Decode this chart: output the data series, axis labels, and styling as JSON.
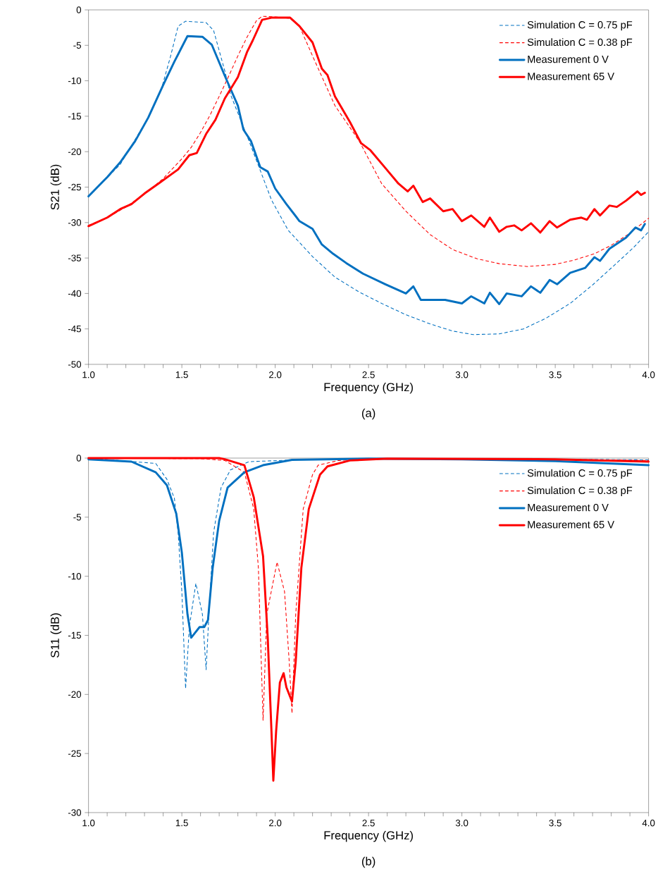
{
  "chart_data": [
    {
      "type": "line",
      "xlabel": "Frequency (GHz)",
      "ylabel": "S21 (dB)",
      "annotations": [
        "(a)"
      ],
      "xlim": [
        1,
        4
      ],
      "ylim": [
        -50,
        0
      ],
      "xticks": [
        {
          "value": 1,
          "label": "1.0"
        },
        {
          "value": 1.1,
          "label": null
        },
        {
          "value": 1.2,
          "label": null
        },
        {
          "value": 1.3,
          "label": null
        },
        {
          "value": 1.4,
          "label": null
        },
        {
          "value": 1.5,
          "label": "1.5"
        },
        {
          "value": 1.6,
          "label": null
        },
        {
          "value": 1.7,
          "label": null
        },
        {
          "value": 1.8,
          "label": null
        },
        {
          "value": 1.9,
          "label": null
        },
        {
          "value": 2,
          "label": "2.0"
        },
        {
          "value": 2.1,
          "label": null
        },
        {
          "value": 2.2,
          "label": null
        },
        {
          "value": 2.3,
          "label": null
        },
        {
          "value": 2.4,
          "label": null
        },
        {
          "value": 2.5,
          "label": "2.5"
        },
        {
          "value": 2.6,
          "label": null
        },
        {
          "value": 2.7,
          "label": null
        },
        {
          "value": 2.8,
          "label": null
        },
        {
          "value": 2.9,
          "label": null
        },
        {
          "value": 3,
          "label": "3.0"
        },
        {
          "value": 3.1,
          "label": null
        },
        {
          "value": 3.2,
          "label": null
        },
        {
          "value": 3.3,
          "label": null
        },
        {
          "value": 3.4,
          "label": null
        },
        {
          "value": 3.5,
          "label": "3.5"
        },
        {
          "value": 3.6,
          "label": null
        },
        {
          "value": 3.7,
          "label": null
        },
        {
          "value": 3.8,
          "label": null
        },
        {
          "value": 3.9,
          "label": null
        },
        {
          "value": 4,
          "label": "4.0"
        }
      ],
      "yticks": [
        0,
        -5,
        -10,
        -15,
        -20,
        -25,
        -30,
        -35,
        -40,
        -45,
        -50
      ],
      "legend": "top right",
      "series": [
        {
          "name": "Simulation C = 0.75 pF",
          "color": "#0070c0",
          "line_style": "dashed",
          "x": [
            1.0,
            1.17,
            1.32,
            1.39,
            1.44,
            1.48,
            1.52,
            1.63,
            1.67,
            1.73,
            1.76,
            1.86,
            1.98,
            2.07,
            2.2,
            2.32,
            2.45,
            2.57,
            2.7,
            2.83,
            2.95,
            3.06,
            3.2,
            3.33,
            3.45,
            3.58,
            3.7,
            3.83,
            3.92,
            4.0
          ],
          "values": [
            -26.3,
            -21.8,
            -15.2,
            -11.2,
            -6.5,
            -2.3,
            -1.6,
            -1.8,
            -2.9,
            -8.6,
            -11.9,
            -18.5,
            -26.8,
            -31.1,
            -34.8,
            -37.7,
            -39.8,
            -41.4,
            -43,
            -44.3,
            -45.3,
            -45.8,
            -45.7,
            -45,
            -43.5,
            -41.4,
            -38.8,
            -35.7,
            -33.5,
            -31.3
          ]
        },
        {
          "name": "Simulation C = 0.38 pF",
          "color": "#ff0000",
          "line_style": "dashed",
          "x": [
            1.0,
            1.1,
            1.2,
            1.3,
            1.4,
            1.5,
            1.55,
            1.6,
            1.65,
            1.7,
            1.75,
            1.8,
            1.85,
            1.9,
            1.93,
            2.0,
            2.08,
            2.13,
            2.2,
            2.32,
            2.45,
            2.57,
            2.7,
            2.83,
            2.95,
            3.08,
            3.2,
            3.35,
            3.5,
            3.6,
            3.71,
            3.8,
            3.9,
            4.0
          ],
          "values": [
            -30.4,
            -29.3,
            -27.8,
            -26,
            -23.8,
            -21,
            -19.4,
            -17.3,
            -14.9,
            -12.2,
            -9.4,
            -6.5,
            -3.8,
            -1.5,
            -0.9,
            -1.0,
            -1.2,
            -2.3,
            -6.5,
            -13.5,
            -18.5,
            -24.5,
            -28.4,
            -31.7,
            -33.8,
            -35.1,
            -35.8,
            -36.2,
            -35.9,
            -35.3,
            -34.4,
            -33.2,
            -31.5,
            -29.4
          ]
        },
        {
          "name": "Measurement 0 V",
          "color": "#0070c0",
          "line_style": "solid",
          "x": [
            1.0,
            1.1,
            1.17,
            1.25,
            1.32,
            1.4,
            1.46,
            1.53,
            1.61,
            1.66,
            1.73,
            1.8,
            1.83,
            1.87,
            1.92,
            1.96,
            2.0,
            2.06,
            2.11,
            2.13,
            2.2,
            2.25,
            2.31,
            2.38,
            2.47,
            2.59,
            2.7,
            2.74,
            2.78,
            2.91,
            3.0,
            3.05,
            3.12,
            3.15,
            3.2,
            3.24,
            3.32,
            3.37,
            3.42,
            3.47,
            3.51,
            3.58,
            3.66,
            3.71,
            3.74,
            3.79,
            3.88,
            3.93,
            3.96,
            3.98
          ],
          "values": [
            -26.3,
            -23.6,
            -21.5,
            -18.5,
            -15.2,
            -10.6,
            -7.3,
            -3.7,
            -3.8,
            -4.9,
            -9.3,
            -13.5,
            -16.9,
            -18.5,
            -22.2,
            -22.8,
            -25.2,
            -27.4,
            -29.1,
            -29.8,
            -30.9,
            -33.1,
            -34.4,
            -35.7,
            -37.2,
            -38.7,
            -40,
            -39,
            -40.9,
            -40.9,
            -41.4,
            -40.4,
            -41.4,
            -39.9,
            -41.5,
            -40,
            -40.4,
            -39,
            -39.9,
            -38.1,
            -38.7,
            -37.1,
            -36.4,
            -34.9,
            -35.4,
            -33.7,
            -32.1,
            -30.7,
            -31.1,
            -30.2
          ]
        },
        {
          "name": "Measurement 65 V",
          "color": "#ff0000",
          "line_style": "solid",
          "x": [
            1.0,
            1.1,
            1.17,
            1.23,
            1.3,
            1.38,
            1.48,
            1.54,
            1.58,
            1.63,
            1.68,
            1.73,
            1.8,
            1.85,
            1.88,
            1.93,
            1.98,
            2.08,
            2.13,
            2.2,
            2.25,
            2.28,
            2.32,
            2.4,
            2.46,
            2.51,
            2.59,
            2.66,
            2.71,
            2.74,
            2.79,
            2.83,
            2.9,
            2.95,
            3.0,
            3.05,
            3.12,
            3.15,
            3.2,
            3.24,
            3.28,
            3.32,
            3.37,
            3.42,
            3.47,
            3.51,
            3.58,
            3.64,
            3.67,
            3.71,
            3.74,
            3.79,
            3.83,
            3.88,
            3.94,
            3.96,
            3.98
          ],
          "values": [
            -30.5,
            -29.3,
            -28.1,
            -27.4,
            -25.9,
            -24.4,
            -22.5,
            -20.5,
            -20.2,
            -17.5,
            -15.5,
            -12.5,
            -9.5,
            -5.9,
            -4.3,
            -1.4,
            -1.1,
            -1.1,
            -2.3,
            -4.6,
            -8.3,
            -9.2,
            -12.2,
            -15.8,
            -18.8,
            -19.8,
            -22.3,
            -24.5,
            -25.6,
            -24.8,
            -27.1,
            -26.6,
            -28.4,
            -28.1,
            -29.8,
            -29,
            -30.6,
            -29.3,
            -31.3,
            -30.6,
            -30.4,
            -31.1,
            -30.1,
            -31.4,
            -29.8,
            -30.7,
            -29.6,
            -29.3,
            -29.6,
            -28.1,
            -29,
            -27.6,
            -27.8,
            -26.9,
            -25.6,
            -26.1,
            -25.8
          ]
        }
      ]
    },
    {
      "type": "line",
      "xlabel": "Frequency (GHz)",
      "ylabel": "S11 (dB)",
      "annotations": [
        "(b)"
      ],
      "xlim": [
        1,
        4
      ],
      "ylim": [
        -30,
        0
      ],
      "xticks": [
        {
          "value": 1,
          "label": "1.0"
        },
        {
          "value": 1.1,
          "label": null
        },
        {
          "value": 1.2,
          "label": null
        },
        {
          "value": 1.3,
          "label": null
        },
        {
          "value": 1.4,
          "label": null
        },
        {
          "value": 1.5,
          "label": "1.5"
        },
        {
          "value": 1.6,
          "label": null
        },
        {
          "value": 1.7,
          "label": null
        },
        {
          "value": 1.8,
          "label": null
        },
        {
          "value": 1.9,
          "label": null
        },
        {
          "value": 2,
          "label": "2.0"
        },
        {
          "value": 2.1,
          "label": null
        },
        {
          "value": 2.2,
          "label": null
        },
        {
          "value": 2.3,
          "label": null
        },
        {
          "value": 2.4,
          "label": null
        },
        {
          "value": 2.5,
          "label": "2.5"
        },
        {
          "value": 2.6,
          "label": null
        },
        {
          "value": 2.7,
          "label": null
        },
        {
          "value": 2.8,
          "label": null
        },
        {
          "value": 2.9,
          "label": null
        },
        {
          "value": 3,
          "label": "3.0"
        },
        {
          "value": 3.1,
          "label": null
        },
        {
          "value": 3.2,
          "label": null
        },
        {
          "value": 3.3,
          "label": null
        },
        {
          "value": 3.4,
          "label": null
        },
        {
          "value": 3.5,
          "label": "3.5"
        },
        {
          "value": 3.6,
          "label": null
        },
        {
          "value": 3.7,
          "label": null
        },
        {
          "value": 3.8,
          "label": null
        },
        {
          "value": 3.9,
          "label": null
        },
        {
          "value": 4,
          "label": "4.0"
        }
      ],
      "yticks": [
        0,
        -5,
        -10,
        -15,
        -20,
        -25,
        -30
      ],
      "legend": "top right",
      "series": [
        {
          "name": "Simulation C = 0.75 pF",
          "color": "#0070c0",
          "line_style": "dashed",
          "x": [
            1.0,
            1.36,
            1.42,
            1.46,
            1.48,
            1.5,
            1.52,
            1.54,
            1.575,
            1.61,
            1.63,
            1.645,
            1.67,
            1.71,
            1.76,
            1.86,
            2.2,
            3.0,
            4.0
          ],
          "values": [
            0,
            -0.45,
            -1.8,
            -3.4,
            -6.3,
            -11.3,
            -19.5,
            -14.3,
            -10.6,
            -13.2,
            -17.9,
            -13.2,
            -6.3,
            -2.5,
            -1.0,
            -0.3,
            -0.1,
            -0.05,
            -0.15
          ]
        },
        {
          "name": "Simulation C = 0.38 pF",
          "color": "#ff0000",
          "line_style": "dashed",
          "x": [
            1.0,
            1.6,
            1.73,
            1.835,
            1.885,
            1.91,
            1.935,
            1.955,
            2.01,
            2.05,
            2.075,
            2.09,
            2.11,
            2.15,
            2.2,
            2.23,
            2.34,
            2.5,
            3.0,
            3.5,
            4.0
          ],
          "values": [
            0,
            -0.05,
            -0.2,
            -1.2,
            -4.3,
            -9.3,
            -22.2,
            -13.2,
            -8.8,
            -11.3,
            -17.2,
            -21.6,
            -13.2,
            -4.3,
            -1.4,
            -0.6,
            -0.2,
            -0.05,
            -0.05,
            -0.1,
            -0.2
          ]
        },
        {
          "name": "Measurement 0 V",
          "color": "#0070c0",
          "line_style": "solid",
          "x": [
            1.0,
            1.23,
            1.36,
            1.42,
            1.47,
            1.5,
            1.53,
            1.55,
            1.57,
            1.595,
            1.62,
            1.64,
            1.665,
            1.7,
            1.745,
            1.835,
            1.935,
            2.09,
            2.5,
            3.0,
            3.5,
            4.0
          ],
          "values": [
            -0.1,
            -0.3,
            -1.2,
            -2.3,
            -4.7,
            -8.0,
            -13.2,
            -15.2,
            -14.8,
            -14.3,
            -14.3,
            -13.7,
            -9.3,
            -5.3,
            -2.5,
            -1.2,
            -0.6,
            -0.15,
            -0.05,
            -0.1,
            -0.25,
            -0.6
          ]
        },
        {
          "name": "Measurement 65 V",
          "color": "#ff0000",
          "line_style": "solid",
          "x": [
            1.0,
            1.7,
            1.73,
            1.835,
            1.885,
            1.935,
            1.96,
            1.98,
            1.99,
            2.005,
            2.025,
            2.045,
            2.06,
            2.09,
            2.11,
            2.14,
            2.18,
            2.24,
            2.28,
            2.4,
            2.6,
            3.5,
            4.0
          ],
          "values": [
            0,
            0,
            -0.1,
            -0.6,
            -3.3,
            -8.3,
            -15.2,
            -23.1,
            -27.3,
            -23.1,
            -19,
            -18.2,
            -19.4,
            -20.6,
            -17.2,
            -9.3,
            -4.3,
            -1.4,
            -0.7,
            -0.2,
            -0.05,
            -0.1,
            -0.3
          ]
        }
      ]
    }
  ]
}
